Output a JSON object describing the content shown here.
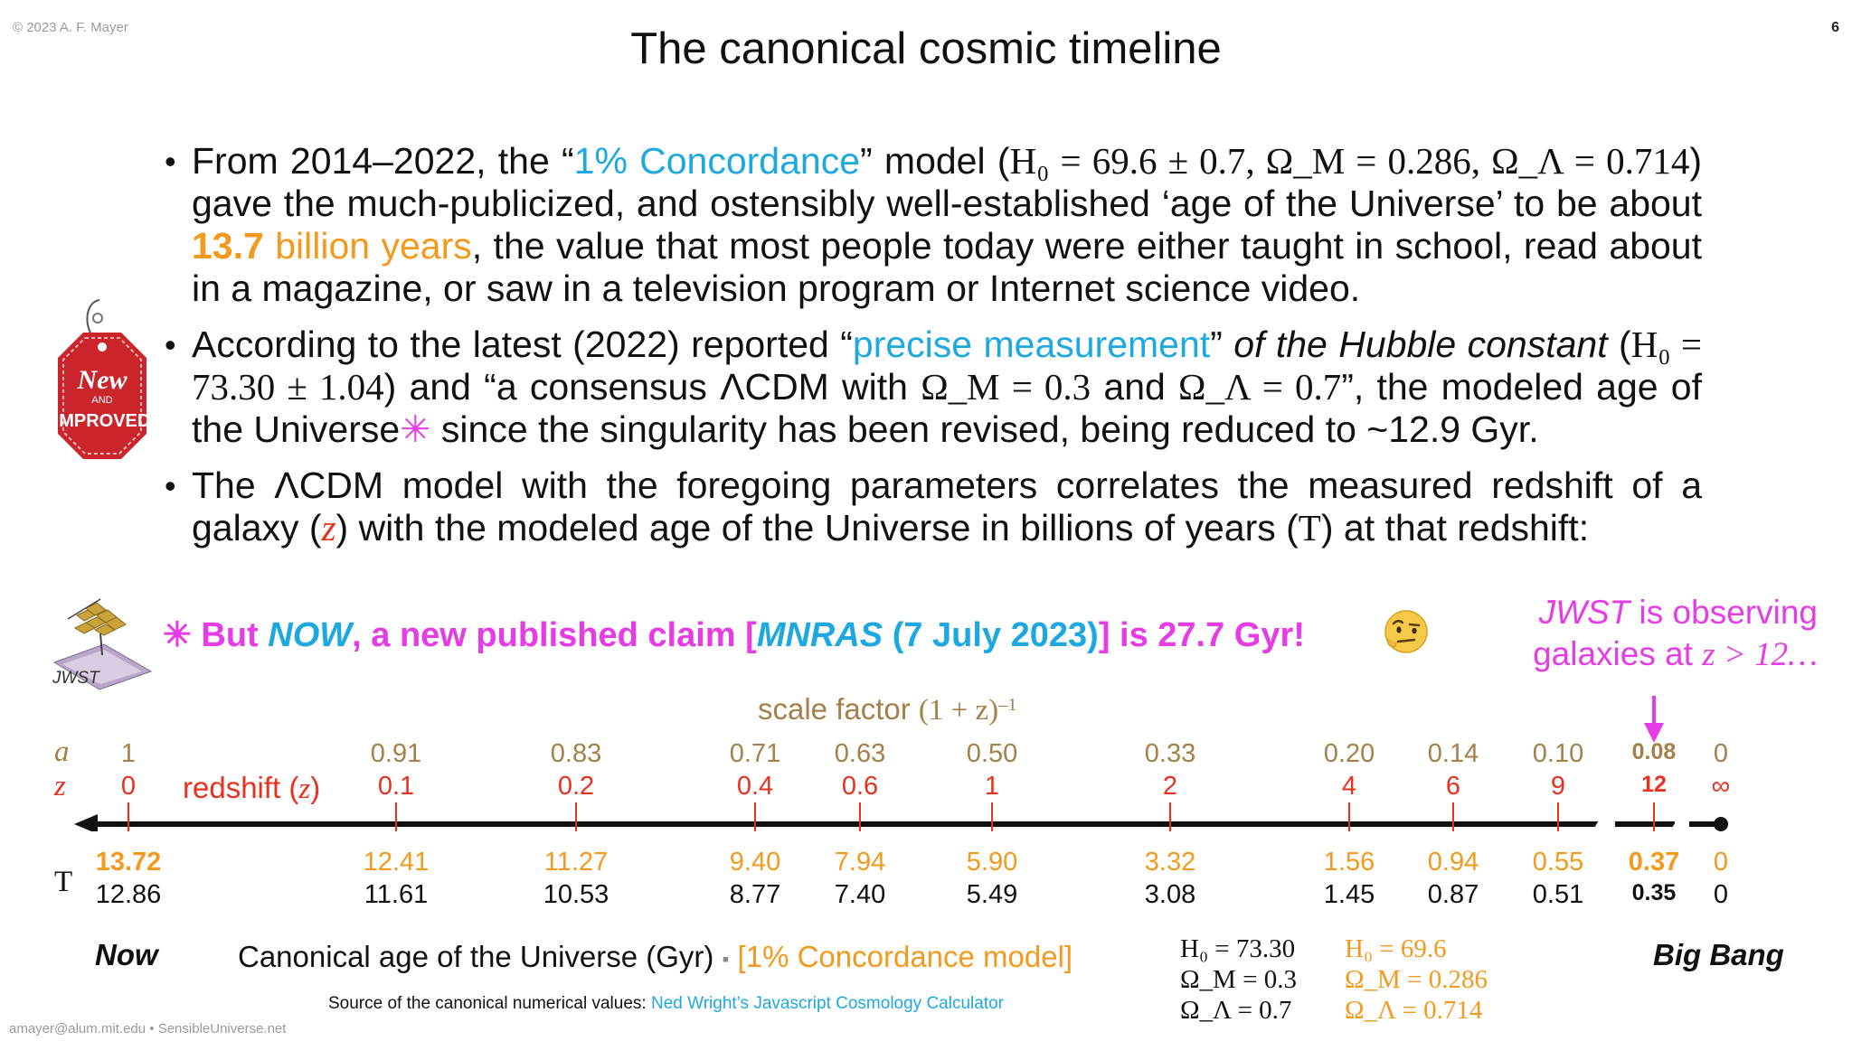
{
  "header": {
    "copyright": "© 2023 A. F. Mayer",
    "page_number": "6",
    "title": "The canonical cosmic timeline"
  },
  "bullets": {
    "b1": {
      "p1": "From 2014–2022, the “",
      "concordance": "1% Concordance",
      "p2": "” model (",
      "formula": "H₀ = 69.6 ± 0.7, Ω_M = 0.286, Ω_Λ = 0.714",
      "p3": ") gave the much-publicized, and ostensibly well-established ‘age of the Universe’ to be about ",
      "age_num": "13.7",
      "age_unit": "billion years",
      "p4": ", the value that most people today were either taught in school, read about in a magazine, or saw in a television program or Internet science video."
    },
    "b2": {
      "p1": "According to the latest (2022) reported “",
      "precise": "precise measurement",
      "p2": "” ",
      "hubble": "of the Hubble constant",
      "p3": " (",
      "formula1": "H₀ = 73.30 ± 1.04",
      "p4": ") and “a consensus ΛCDM with ",
      "formula2": "Ω_M = 0.3",
      "p5": " and ",
      "formula3": "Ω_Λ = 0.7",
      "p6": "”, the modeled age of the Universe",
      "asterisk": "✳",
      "p7": " since the singularity has been revised, being reduced to ~12.9 Gyr."
    },
    "b3": {
      "p1": "The ΛCDM model with the foregoing parameters correlates the measured redshift of a galaxy (",
      "z": "z",
      "p2": ") with the modeled age of the Universe in billions of years (",
      "t": "T",
      "p3": ") at that redshift:"
    }
  },
  "tag": {
    "line1": "New",
    "line2": "AND",
    "line3": "IMPROVED"
  },
  "claim": {
    "asterisk": "✳",
    "p1": " But ",
    "now": "NOW",
    "p2": ", a new published claim [",
    "mnras": "MNRAS",
    "date": " (7 July 2023)",
    "p3": "] is 27.7 Gyr!"
  },
  "jwst": {
    "label": "JWST",
    "note_jwst": "JWST",
    "note_line1": " is observing",
    "note_line2": "galaxies at ",
    "note_z": "z > 12…"
  },
  "timeline": {
    "scale_title": "scale factor ",
    "scale_formula": "(1 + z)",
    "scale_exp": "–1",
    "row_a": "a",
    "row_z": "z",
    "row_t": "T",
    "redshift_label": "redshift (",
    "redshift_z": "z",
    "redshift_close": ")",
    "now_label": "Now",
    "bigbang_label": "Big Bang",
    "colors": {
      "scale": "#a5804a",
      "redshift": "#e8311f",
      "concordance": "#f39a1e",
      "modern": "#111111",
      "jwst": "#e63ce6"
    },
    "ticks": [
      {
        "a": "1",
        "z": "0",
        "t_conc": "13.72",
        "t_new": "12.86"
      },
      {
        "a": "0.91",
        "z": "0.1",
        "t_conc": "12.41",
        "t_new": "11.61"
      },
      {
        "a": "0.83",
        "z": "0.2",
        "t_conc": "11.27",
        "t_new": "10.53"
      },
      {
        "a": "0.71",
        "z": "0.4",
        "t_conc": "9.40",
        "t_new": "8.77"
      },
      {
        "a": "0.63",
        "z": "0.6",
        "t_conc": "7.94",
        "t_new": "7.40"
      },
      {
        "a": "0.50",
        "z": "1",
        "t_conc": "5.90",
        "t_new": "5.49"
      },
      {
        "a": "0.33",
        "z": "2",
        "t_conc": "3.32",
        "t_new": "3.08"
      },
      {
        "a": "0.20",
        "z": "4",
        "t_conc": "1.56",
        "t_new": "1.45"
      },
      {
        "a": "0.14",
        "z": "6",
        "t_conc": "0.94",
        "t_new": "0.87"
      },
      {
        "a": "0.10",
        "z": "9",
        "t_conc": "0.55",
        "t_new": "0.51"
      },
      {
        "a": "0.08",
        "z": "12",
        "t_conc": "0.37",
        "t_new": "0.35"
      },
      {
        "a": "0",
        "z": "∞",
        "t_conc": "0",
        "t_new": "0"
      }
    ]
  },
  "bottom": {
    "canon_text": "Canonical age of the Universe (Gyr) ",
    "canon_sep": "▪",
    "canon_model": " [1% Concordance model]",
    "params_new": [
      "H₀  = 73.30",
      "Ω_M = 0.3",
      "Ω_Λ = 0.7"
    ],
    "params_conc": [
      "H₀  = 69.6",
      "Ω_M = 0.286",
      "Ω_Λ = 0.714"
    ],
    "source_text": "Source of the canonical numerical values: ",
    "source_link": "Ned Wright’s Javascript Cosmology Calculator",
    "footer": "amayer@alum.mit.edu • SensibleUniverse.net"
  }
}
